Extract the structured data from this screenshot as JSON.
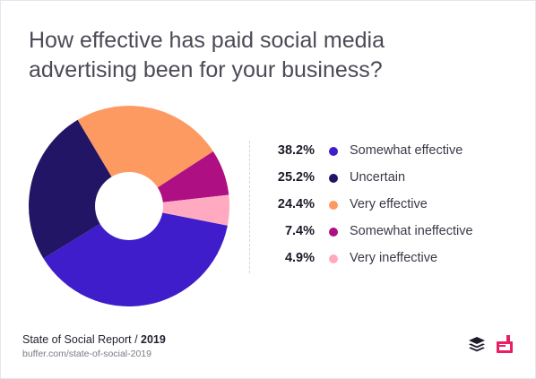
{
  "header": {
    "title_line1": "How effective has paid social media",
    "title_line2": "advertising been for your business?"
  },
  "chart_data": {
    "type": "pie",
    "categories": [
      "Somewhat effective",
      "Uncertain",
      "Very effective",
      "Somewhat ineffective",
      "Very ineffective"
    ],
    "values": [
      38.2,
      25.2,
      24.4,
      7.4,
      4.9
    ],
    "value_labels": [
      "38.2%",
      "25.2%",
      "24.4%",
      "7.4%",
      "4.9%"
    ],
    "colors": [
      "#3f1dcb",
      "#231565",
      "#fd9a62",
      "#ae0f82",
      "#ffaac0"
    ],
    "title": "How effective has paid social media advertising been for your business?",
    "legend_position": "right",
    "donut": true
  },
  "footer": {
    "source_name": "State of Social Report / ",
    "source_year": "2019",
    "source_url": "buffer.com/state-of-social-2019",
    "icons": [
      "buffer-logo-icon",
      "brand-logo-icon"
    ]
  }
}
